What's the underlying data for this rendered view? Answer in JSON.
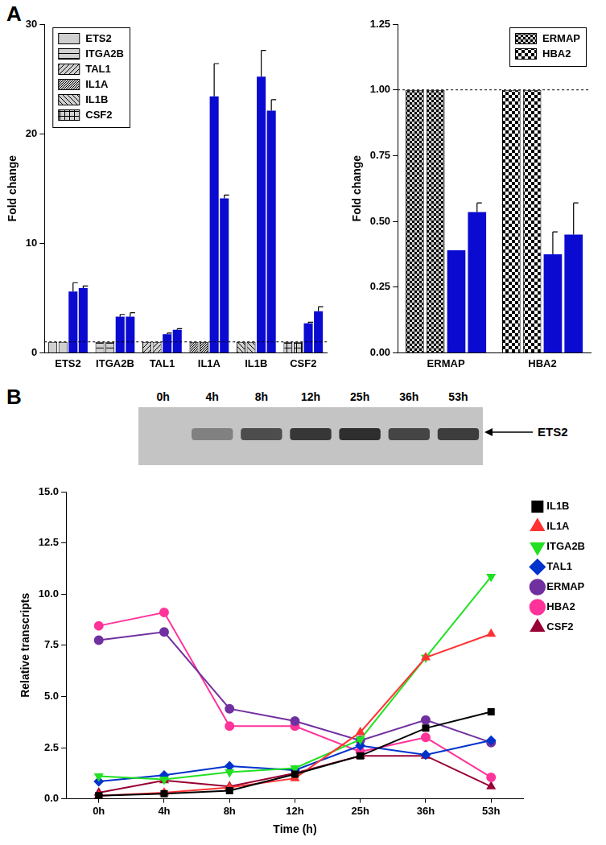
{
  "panel_labels": [
    "A",
    "B"
  ],
  "chart_data": [
    {
      "type": "bar",
      "y_label": "Fold change",
      "categories": [
        "ETS2",
        "ITGA2B",
        "TAL1",
        "IL1A",
        "IL1B",
        "CSF2"
      ],
      "series": [
        {
          "colors": [
            "#d0d0d0",
            "#d0d0d0",
            "#d0d0d0",
            "#d0d0d0",
            "#d0d0d0",
            "#d0d0d0"
          ],
          "values": [
            1,
            1,
            1,
            1,
            1,
            1
          ]
        },
        {
          "colors": [
            "#d0d0d0",
            "#d0d0d0",
            "#d0d0d0",
            "#d0d0d0",
            "#d0d0d0",
            "#d0d0d0"
          ],
          "values": [
            1,
            1,
            1,
            1,
            1,
            1
          ]
        },
        {
          "color": "#0a0ad0",
          "values": [
            5.6,
            3.3,
            1.7,
            23.4,
            25.2,
            2.7
          ],
          "errors": [
            0.8,
            0.2,
            0.1,
            3.0,
            2.4,
            0.1
          ]
        },
        {
          "color": "#0a0ad0",
          "values": [
            5.9,
            3.3,
            2.1,
            14.1,
            22.1,
            3.8
          ],
          "errors": [
            0.2,
            0.35,
            0.1,
            0.3,
            1.0,
            0.4
          ]
        }
      ],
      "hline": 1,
      "legend": "upper left",
      "grid": false,
      "ylim": [
        0,
        30
      ],
      "yticks": [
        0,
        10,
        20,
        30
      ]
    },
    {
      "type": "bar",
      "y_label": "Fold change",
      "categories": [
        "ERMAP",
        "HBA2"
      ],
      "series": [
        {
          "colors": [
            "#d0d0d0",
            "#d0d0d0"
          ],
          "values": [
            1,
            1
          ]
        },
        {
          "colors": [
            "#d0d0d0",
            "#d0d0d0"
          ],
          "values": [
            1,
            1
          ]
        },
        {
          "color": "#0a0ad0",
          "values": [
            0.39,
            0.375
          ],
          "errors": [
            null,
            0.085
          ]
        },
        {
          "color": "#0a0ad0",
          "values": [
            0.535,
            0.45
          ],
          "errors": [
            0.035,
            0.12
          ]
        }
      ],
      "hline": 1,
      "legend": "upper right",
      "grid": false,
      "ylim": [
        0,
        1.25
      ],
      "yticks": [
        {
          "value": 0,
          "label": "0.00"
        },
        {
          "value": 0.25,
          "label": "0.25"
        },
        {
          "value": 0.5,
          "label": "0.50"
        },
        {
          "value": 0.75,
          "label": "0.75"
        },
        {
          "value": 1,
          "label": "1.00"
        },
        {
          "value": 1.25,
          "label": "1.25"
        }
      ]
    },
    {
      "type": "line",
      "x_label": "Time (h)",
      "y_label": "Relative transcripts",
      "categories": [
        "0h",
        "4h",
        "8h",
        "12h",
        "25h",
        "36h",
        "53h"
      ],
      "series": [
        {
          "name": "IL1B",
          "color": "#000000",
          "marker": "square",
          "values": [
            0.15,
            0.25,
            0.4,
            1.2,
            2.1,
            3.45,
            4.25
          ]
        },
        {
          "name": "IL1A",
          "color": "#ff3333",
          "marker": "triangle",
          "values": [
            0.15,
            0.3,
            0.55,
            1.0,
            3.25,
            6.9,
            8.05
          ]
        },
        {
          "name": "ITGA2B",
          "color": "#22e022",
          "marker": "triangle_down",
          "values": [
            1.1,
            0.95,
            1.3,
            1.5,
            2.9,
            6.9,
            10.85
          ]
        },
        {
          "name": "TAL1",
          "color": "#0033cc",
          "marker": "diamond",
          "values": [
            0.85,
            1.15,
            1.6,
            1.4,
            2.6,
            2.15,
            2.85
          ]
        },
        {
          "name": "ERMAP",
          "color": "#7030a0",
          "marker": "circle",
          "values": [
            7.75,
            8.15,
            4.4,
            3.8,
            2.85,
            3.85,
            2.75
          ]
        },
        {
          "name": "HBA2",
          "color": "#ff3399",
          "marker": "circle",
          "values": [
            8.45,
            9.1,
            3.55,
            3.55,
            2.3,
            3.0,
            1.05
          ]
        },
        {
          "name": "CSF2",
          "color": "#990033",
          "marker": "triangle",
          "values": [
            0.3,
            0.9,
            0.6,
            1.25,
            2.1,
            2.1,
            0.6
          ]
        }
      ],
      "legend": "right",
      "grid": false,
      "ylim": [
        0,
        15
      ],
      "yticks": [
        {
          "value": 0,
          "label": "0.0"
        },
        {
          "value": 2.5,
          "label": "2.5"
        },
        {
          "value": 5,
          "label": "5.0"
        },
        {
          "value": 7.5,
          "label": "7.5"
        },
        {
          "value": 10,
          "label": "10.0"
        },
        {
          "value": 12.5,
          "label": "12.5"
        },
        {
          "value": 15,
          "label": "15.0"
        }
      ]
    }
  ],
  "blot": {
    "lanes": [
      "0h",
      "4h",
      "8h",
      "12h",
      "25h",
      "36h",
      "53h"
    ],
    "bands": [
      0,
      0.45,
      0.8,
      0.95,
      1,
      0.85,
      0.9
    ],
    "label": "ETS2"
  }
}
